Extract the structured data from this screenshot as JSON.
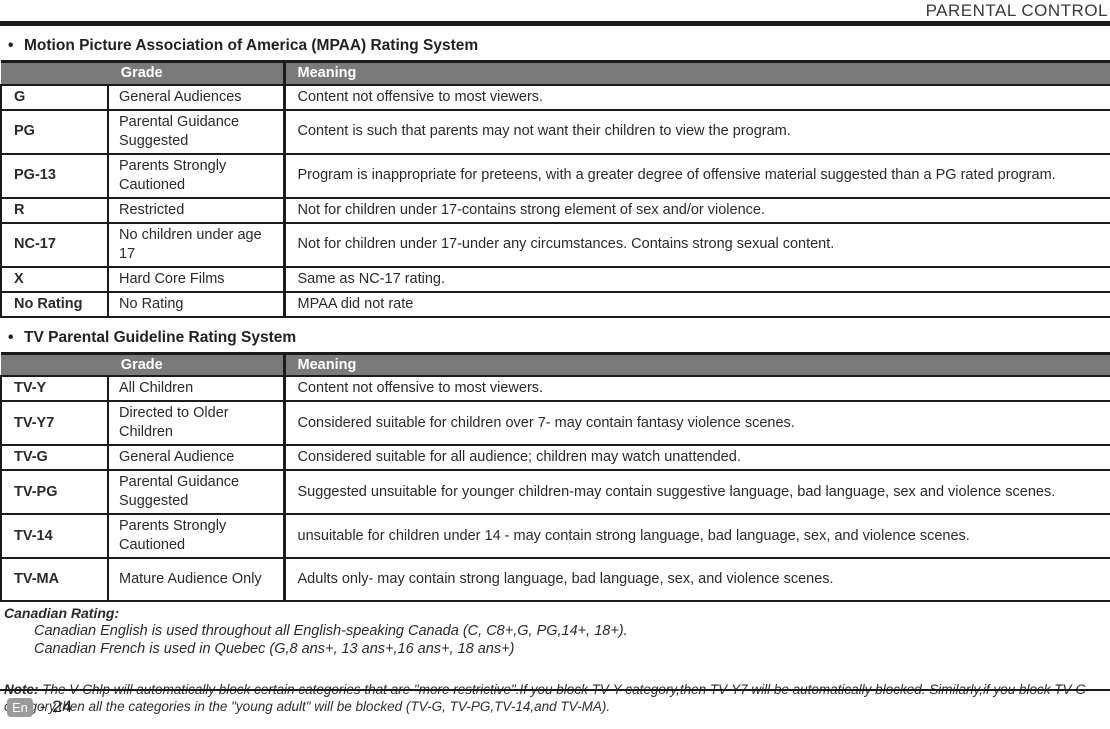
{
  "bullet": "•",
  "header": {
    "title": "PARENTAL CONTROL"
  },
  "mpaa_section": {
    "heading": "Motion Picture Association of America (MPAA) Rating System"
  },
  "tv_section": {
    "heading": "TV Parental Guideline Rating System"
  },
  "table_headers": {
    "grade": "Grade",
    "meaning": "Meaning"
  },
  "mpaa_table": {
    "rows": [
      {
        "code": "G",
        "grade": "General Audiences",
        "meaning": "Content not offensive to most viewers.",
        "lines": 1,
        "justify": false
      },
      {
        "code": "PG",
        "grade": "Parental Guidance Suggested",
        "meaning": "Content is such that parents may not want their children to view the program.",
        "lines": 2,
        "justify": false
      },
      {
        "code": "PG-13",
        "grade": "Parents Strongly Cautioned",
        "meaning": "Program is inappropriate for preteens, with a greater degree of offensive material suggested than a PG rated program.",
        "lines": 2,
        "justify": false
      },
      {
        "code": "R",
        "grade": "Restricted",
        "meaning": "Not for children under 17-contains strong element of sex and/or violence.",
        "lines": 1,
        "justify": false
      },
      {
        "code": "NC-17",
        "grade": "No children under age 17",
        "meaning": "Not for children under 17-under any circumstances. Contains strong sexual content.",
        "lines": 2,
        "justify": false
      },
      {
        "code": "X",
        "grade": "Hard Core Films",
        "meaning": "Same as NC-17 rating.",
        "lines": 1,
        "justify": false
      },
      {
        "code": "No Rating",
        "grade": "No Rating",
        "meaning": "MPAA did not rate",
        "lines": 1,
        "justify": false
      }
    ]
  },
  "tv_table": {
    "rows": [
      {
        "code": "TV-Y",
        "grade": "All Children",
        "meaning": "Content not offensive to most viewers.",
        "lines": 1,
        "justify": false
      },
      {
        "code": "TV-Y7",
        "grade": "Directed to Older Children",
        "meaning": "Considered suitable for children over 7- may contain fantasy violence scenes.",
        "lines": 2,
        "justify": false
      },
      {
        "code": "TV-G",
        "grade": "General Audience",
        "meaning": "Considered suitable for all audience; children may watch unattended.",
        "lines": 1,
        "justify": false
      },
      {
        "code": "TV-PG",
        "grade": "Parental Guidance Suggested",
        "meaning": "Suggested unsuitable for younger children-may contain suggestive language, bad language, sex and violence scenes.",
        "lines": 2,
        "justify": true
      },
      {
        "code": "TV-14",
        "grade": "Parents Strongly Cautioned",
        "meaning": "unsuitable for children under 14 - may contain strong language, bad language, sex, and violence scenes.",
        "lines": 2,
        "justify": false
      },
      {
        "code": "TV-MA",
        "grade": "Mature Audience Only",
        "meaning": "Adults only- may contain strong language, bad language, sex, and violence scenes.",
        "lines": 2,
        "justify": false
      }
    ]
  },
  "canadian": {
    "title": "Canadian Rating:",
    "lines": [
      "Canadian English is used throughout all English-speaking Canada (C, C8+,G, PG,14+, 18+).",
      "Canadian French is used in Quebec (G,8 ans+, 13 ans+,16 ans+, 18 ans+)"
    ]
  },
  "note": {
    "label": "Note:",
    "text": "The V-Chlp will automatically block  certain categories  that are \"more restrictive\".If you block TV-Y category,then TV-Y7 will be automatically blocked. Similarly,if  you block  TV-G category,then all the categories in the \"young adult\" will be blocked (TV-G, TV-PG,TV-14,and TV-MA)."
  },
  "footer": {
    "lang": "En",
    "page": "- 24"
  }
}
